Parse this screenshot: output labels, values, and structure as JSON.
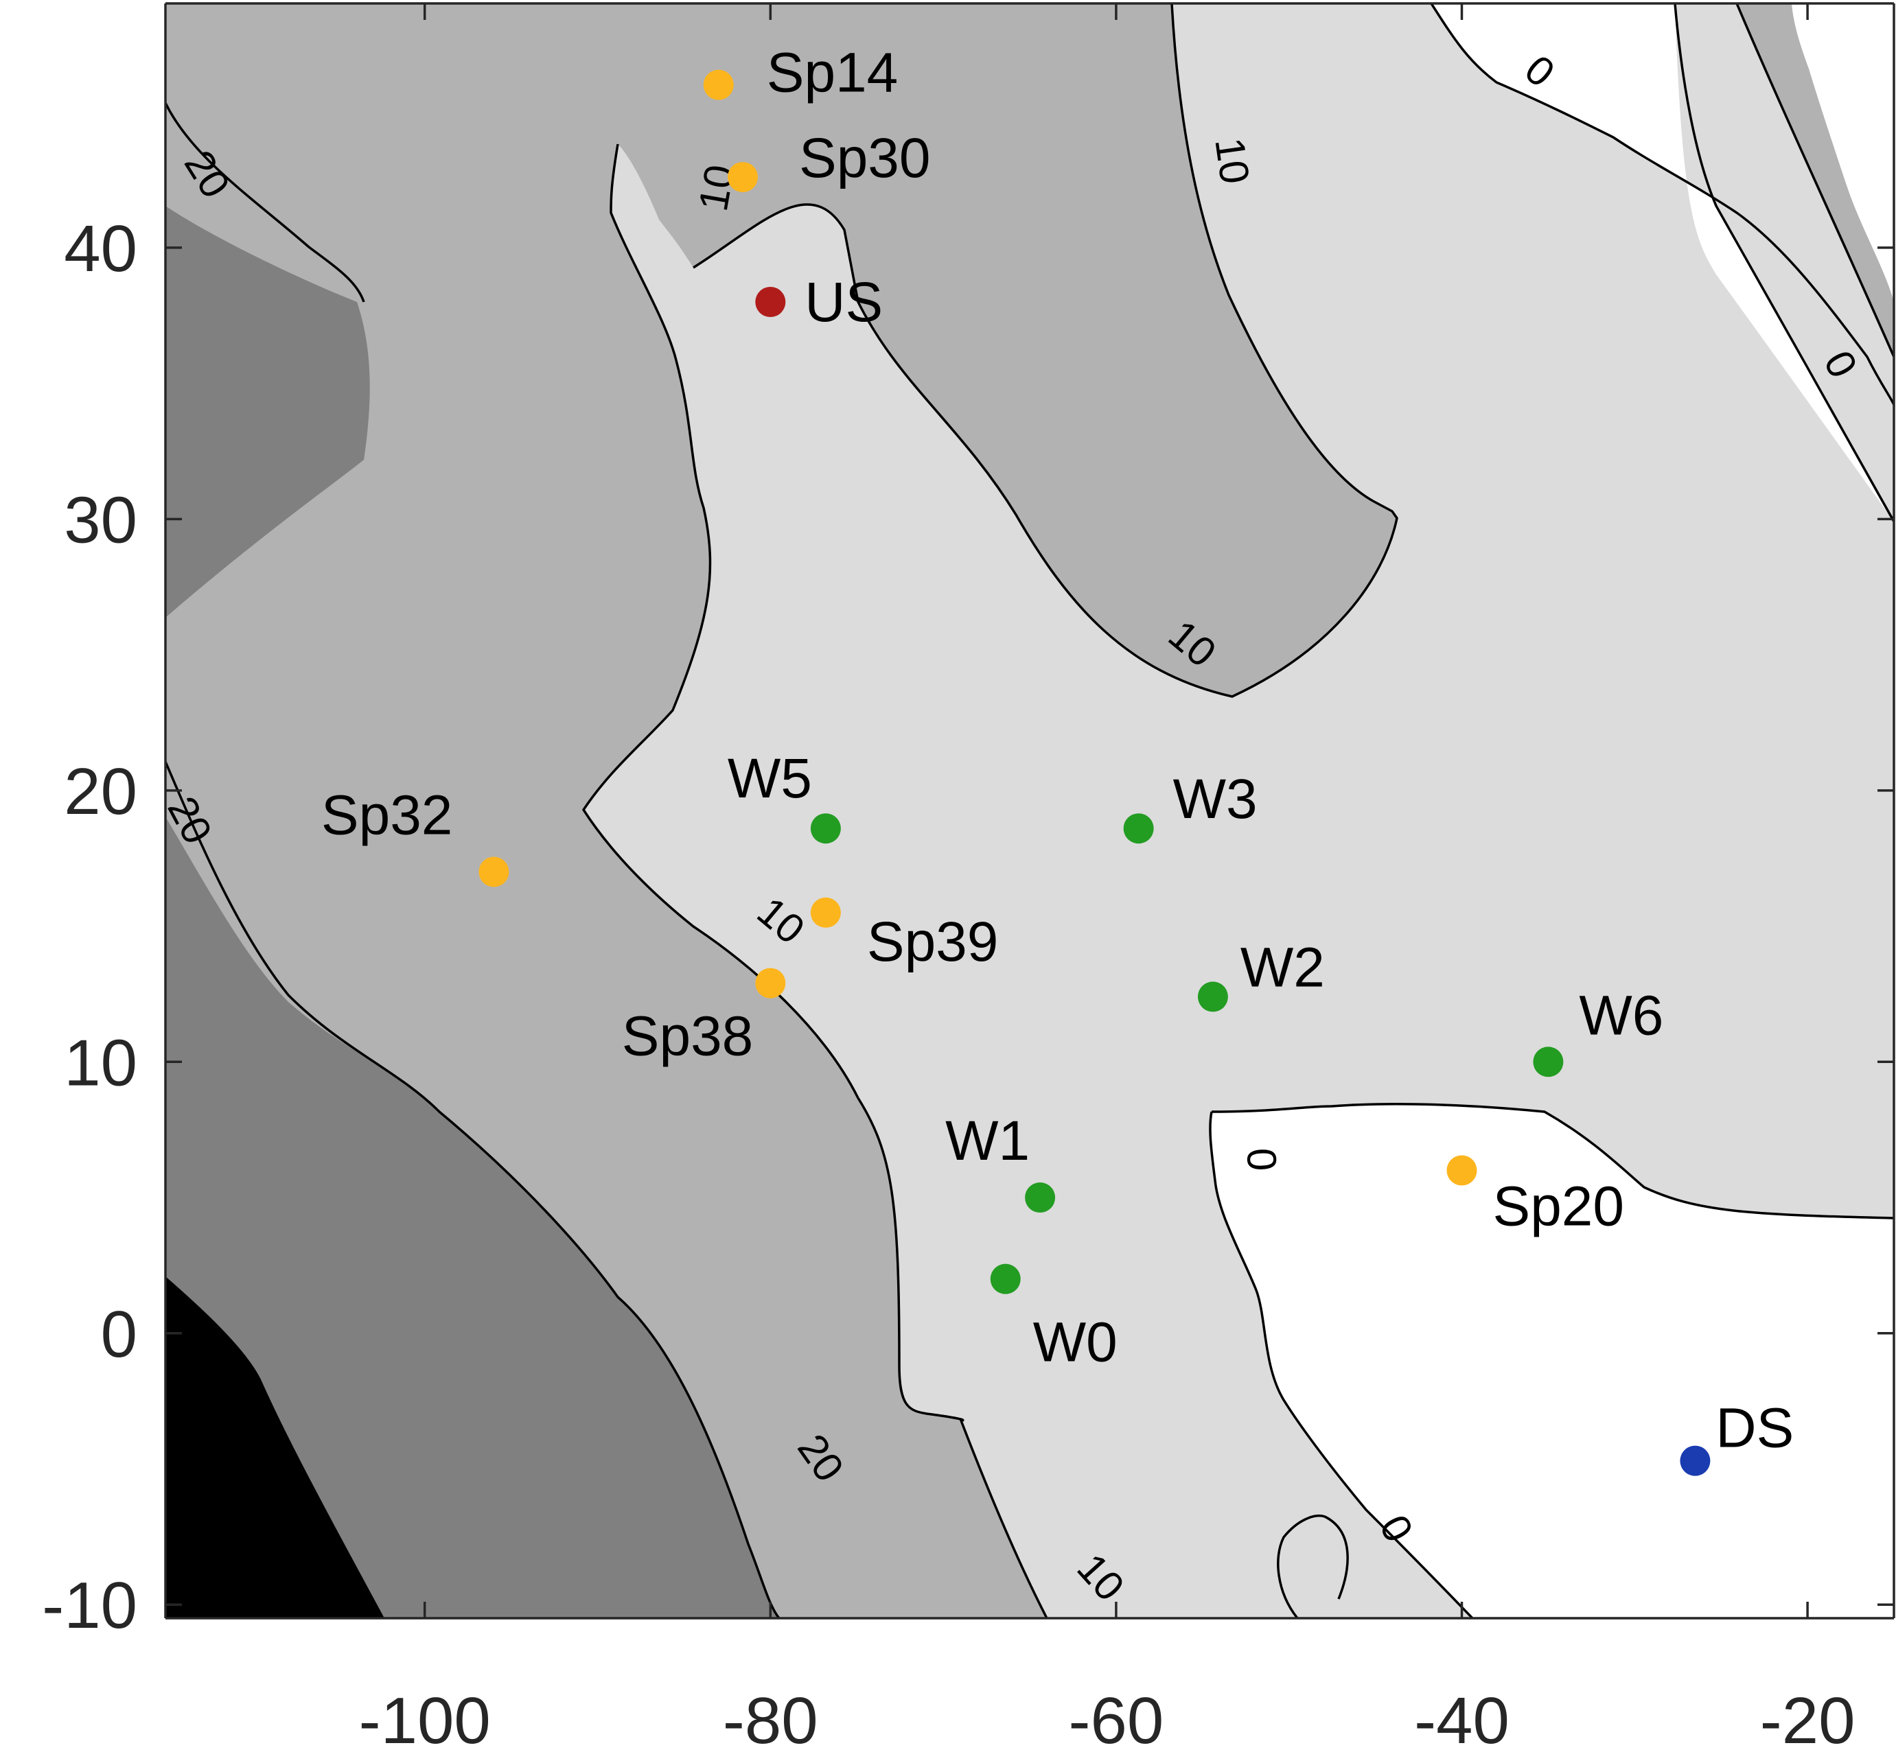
{
  "chart_data": {
    "type": "scatter",
    "background": "contour",
    "xlim": [
      -115,
      -15
    ],
    "ylim": [
      -10.5,
      49
    ],
    "x_ticks": [
      -100,
      -80,
      -60,
      -40,
      -20
    ],
    "y_ticks": [
      -10,
      0,
      10,
      20,
      30,
      40
    ],
    "x_tick_labels": [
      "-100",
      "-80",
      "-60",
      "-40",
      "-20"
    ],
    "y_tick_labels": [
      "-10",
      "0",
      "10",
      "20",
      "30",
      "40"
    ],
    "grid": false,
    "legend": "none",
    "contour_levels": [
      0,
      10,
      20
    ],
    "contour_fill_colors": [
      "#ffffff",
      "#dcdcdc",
      "#b2b2b2",
      "#808080",
      "#000000"
    ],
    "contour_labels": [
      {
        "text": "0",
        "x": -35.5,
        "y": 46.5,
        "angle": 40
      },
      {
        "text": "0",
        "x": -18.1,
        "y": 35.7,
        "angle": 62
      },
      {
        "text": "0",
        "x": -51.6,
        "y": 6.4,
        "angle": 88
      },
      {
        "text": "0",
        "x": -43.8,
        "y": -7.2,
        "angle": 62
      },
      {
        "text": "10",
        "x": -83.1,
        "y": 42.2,
        "angle": -80
      },
      {
        "text": "10",
        "x": -53.3,
        "y": 43.2,
        "angle": 82
      },
      {
        "text": "10",
        "x": -55.6,
        "y": 25.4,
        "angle": 40
      },
      {
        "text": "10",
        "x": -79.4,
        "y": 15.2,
        "angle": 40
      },
      {
        "text": "10",
        "x": -60.9,
        "y": -9.0,
        "angle": 48
      },
      {
        "text": "20",
        "x": -112.6,
        "y": 42.7,
        "angle": 58
      },
      {
        "text": "20",
        "x": -113.6,
        "y": 18.9,
        "angle": 62
      },
      {
        "text": "20",
        "x": -77.1,
        "y": -4.6,
        "angle": 55
      }
    ],
    "points": [
      {
        "label": "Sp14",
        "x": -83,
        "y": 46,
        "group": "Sp",
        "color": "#FDB51D"
      },
      {
        "label": "Sp30",
        "x": -81.6,
        "y": 42.6,
        "group": "Sp",
        "color": "#FDB51D"
      },
      {
        "label": "US",
        "x": -80,
        "y": 38,
        "group": "US",
        "color": "#B01C1A"
      },
      {
        "label": "Sp32",
        "x": -96,
        "y": 17,
        "group": "Sp",
        "color": "#FDB51D"
      },
      {
        "label": "W5",
        "x": -76.8,
        "y": 18.6,
        "group": "W",
        "color": "#239C22"
      },
      {
        "label": "Sp39",
        "x": -76.8,
        "y": 15.5,
        "group": "Sp",
        "color": "#FDB51D"
      },
      {
        "label": "Sp38",
        "x": -80,
        "y": 12.9,
        "group": "Sp",
        "color": "#FDB51D"
      },
      {
        "label": "W3",
        "x": -58.7,
        "y": 18.6,
        "group": "W",
        "color": "#239C22"
      },
      {
        "label": "W2",
        "x": -54.4,
        "y": 12.4,
        "group": "W",
        "color": "#239C22"
      },
      {
        "label": "W6",
        "x": -35,
        "y": 10,
        "group": "W",
        "color": "#239C22"
      },
      {
        "label": "W1",
        "x": -64.4,
        "y": 5,
        "group": "W",
        "color": "#239C22"
      },
      {
        "label": "W0",
        "x": -66.4,
        "y": 2,
        "group": "W",
        "color": "#239C22"
      },
      {
        "label": "Sp20",
        "x": -40,
        "y": 6,
        "group": "Sp",
        "color": "#FDB51D"
      },
      {
        "label": "DS",
        "x": -26.5,
        "y": -4.7,
        "group": "DS",
        "color": "#1A3CB0"
      }
    ]
  }
}
